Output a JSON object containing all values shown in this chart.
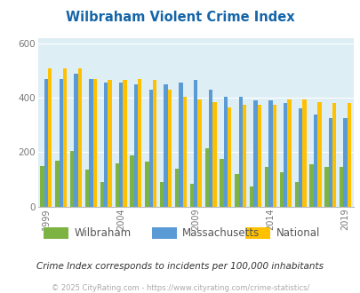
{
  "title": "Wilbraham Violent Crime Index",
  "years": [
    1999,
    2000,
    2001,
    2002,
    2003,
    2004,
    2005,
    2006,
    2007,
    2008,
    2009,
    2010,
    2011,
    2012,
    2013,
    2014,
    2015,
    2016,
    2017,
    2018,
    2019,
    2020
  ],
  "wilbraham": [
    150,
    170,
    205,
    135,
    90,
    160,
    190,
    165,
    90,
    140,
    85,
    215,
    175,
    120,
    75,
    145,
    125,
    90,
    155,
    145,
    145,
    0
  ],
  "massachusetts": [
    470,
    470,
    490,
    470,
    455,
    455,
    450,
    430,
    450,
    455,
    465,
    430,
    405,
    405,
    390,
    390,
    380,
    360,
    340,
    325,
    325,
    0
  ],
  "national": [
    510,
    510,
    510,
    470,
    465,
    465,
    470,
    465,
    430,
    405,
    395,
    385,
    365,
    375,
    375,
    375,
    395,
    395,
    385,
    380,
    380,
    0
  ],
  "wilbraham_color": "#7cb342",
  "massachusetts_color": "#5b9bd5",
  "national_color": "#ffc000",
  "plot_bg": "#deeef5",
  "ylim": [
    0,
    620
  ],
  "yticks": [
    0,
    200,
    400,
    600
  ],
  "xlabel_ticks": [
    1999,
    2004,
    2009,
    2014,
    2019
  ],
  "legend_labels": [
    "Wilbraham",
    "Massachusetts",
    "National"
  ],
  "footnote1": "Crime Index corresponds to incidents per 100,000 inhabitants",
  "footnote2": "© 2025 CityRating.com - https://www.cityrating.com/crime-statistics/"
}
